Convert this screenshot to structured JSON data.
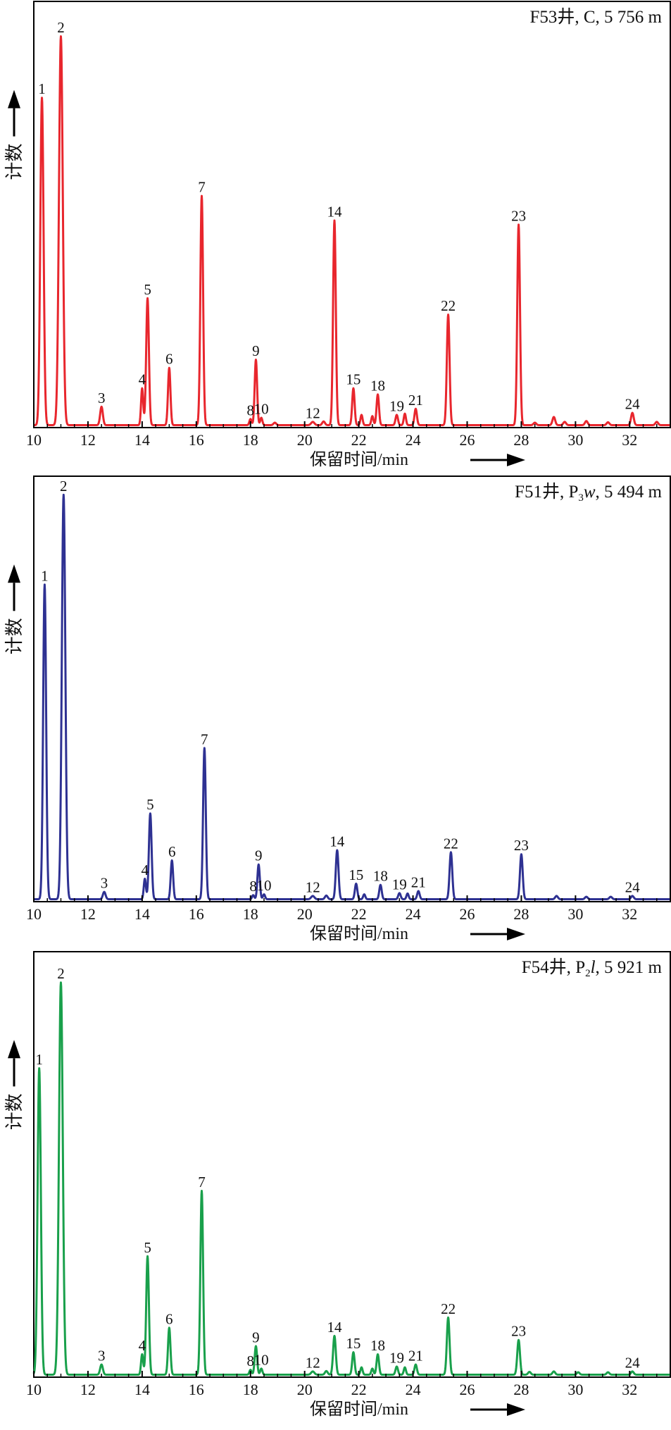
{
  "chart_data": [
    {
      "type": "line",
      "title": "F53井, C, 5 756 m",
      "title_parts": {
        "well": "F53井,",
        "formation": "C",
        "formation_sub": "",
        "formation_italic": "",
        "depth": ", 5 756 m"
      },
      "xlabel": "保留时间/min",
      "ylabel": "计数",
      "xlim": [
        10,
        33.5
      ],
      "ylim": [
        0,
        100
      ],
      "xticks": [
        10,
        12,
        14,
        16,
        18,
        20,
        22,
        24,
        26,
        28,
        30,
        32
      ],
      "color": "#e8262d",
      "baseline_level": 0.6,
      "peaks": [
        {
          "label": "1",
          "x": 10.3,
          "height": 80,
          "width": 0.06
        },
        {
          "label": "2",
          "x": 11.0,
          "height": 95,
          "width": 0.07
        },
        {
          "label": "3",
          "x": 12.5,
          "height": 4.5,
          "width": 0.05
        },
        {
          "label": "4",
          "x": 14.0,
          "height": 9,
          "width": 0.04
        },
        {
          "label": "5",
          "x": 14.2,
          "height": 31,
          "width": 0.05
        },
        {
          "label": "6",
          "x": 15.0,
          "height": 14,
          "width": 0.045
        },
        {
          "label": "7",
          "x": 16.2,
          "height": 56,
          "width": 0.05
        },
        {
          "label": "8",
          "x": 18.0,
          "height": 1.5,
          "width": 0.04
        },
        {
          "label": "9",
          "x": 18.2,
          "height": 16,
          "width": 0.045
        },
        {
          "label": "10",
          "x": 18.4,
          "height": 1.8,
          "width": 0.04
        },
        {
          "label": "12",
          "x": 20.3,
          "height": 0.8,
          "width": 0.06
        },
        {
          "label": "14",
          "x": 21.1,
          "height": 50,
          "width": 0.05
        },
        {
          "label": "15",
          "x": 21.8,
          "height": 9,
          "width": 0.045
        },
        {
          "label": "18",
          "x": 22.7,
          "height": 7.5,
          "width": 0.045
        },
        {
          "label": "19",
          "x": 23.4,
          "height": 2.5,
          "width": 0.045
        },
        {
          "label": "21",
          "x": 24.1,
          "height": 4,
          "width": 0.045
        },
        {
          "label": "22",
          "x": 25.3,
          "height": 27,
          "width": 0.05
        },
        {
          "label": "23",
          "x": 27.9,
          "height": 49,
          "width": 0.05
        },
        {
          "label": "24",
          "x": 32.1,
          "height": 3,
          "width": 0.05
        }
      ],
      "minor_peaks": [
        {
          "x": 18.9,
          "height": 0.6,
          "width": 0.05
        },
        {
          "x": 20.7,
          "height": 0.9,
          "width": 0.05
        },
        {
          "x": 22.1,
          "height": 2.5,
          "width": 0.04
        },
        {
          "x": 22.5,
          "height": 2.2,
          "width": 0.04
        },
        {
          "x": 23.7,
          "height": 2.8,
          "width": 0.04
        },
        {
          "x": 28.5,
          "height": 0.6,
          "width": 0.05
        },
        {
          "x": 29.2,
          "height": 2,
          "width": 0.05
        },
        {
          "x": 29.6,
          "height": 0.8,
          "width": 0.05
        },
        {
          "x": 30.4,
          "height": 1,
          "width": 0.05
        },
        {
          "x": 31.2,
          "height": 0.7,
          "width": 0.05
        },
        {
          "x": 33.0,
          "height": 0.8,
          "width": 0.05
        }
      ],
      "legend": "none"
    },
    {
      "type": "line",
      "title": "F51井, P3w, 5 494 m",
      "title_parts": {
        "well": "F51井,",
        "formation": "P",
        "formation_sub": "3",
        "formation_italic": "w",
        "depth": ", 5 494 m"
      },
      "xlabel": "保留时间/min",
      "ylabel": "计数",
      "xlim": [
        10,
        33.5
      ],
      "ylim": [
        0,
        100
      ],
      "xticks": [
        10,
        12,
        14,
        16,
        18,
        20,
        22,
        24,
        26,
        28,
        30,
        32
      ],
      "color": "#2e3192",
      "baseline_level": 0.6,
      "peaks": [
        {
          "label": "1",
          "x": 10.4,
          "height": 77,
          "width": 0.055
        },
        {
          "label": "2",
          "x": 11.1,
          "height": 99,
          "width": 0.065
        },
        {
          "label": "3",
          "x": 12.6,
          "height": 1.8,
          "width": 0.05
        },
        {
          "label": "4",
          "x": 14.1,
          "height": 5,
          "width": 0.04
        },
        {
          "label": "5",
          "x": 14.3,
          "height": 21,
          "width": 0.05
        },
        {
          "label": "6",
          "x": 15.1,
          "height": 9.5,
          "width": 0.045
        },
        {
          "label": "7",
          "x": 16.3,
          "height": 37,
          "width": 0.05
        },
        {
          "label": "8",
          "x": 18.1,
          "height": 1,
          "width": 0.04
        },
        {
          "label": "9",
          "x": 18.3,
          "height": 8.5,
          "width": 0.045
        },
        {
          "label": "10",
          "x": 18.5,
          "height": 1.2,
          "width": 0.04
        },
        {
          "label": "12",
          "x": 20.3,
          "height": 0.8,
          "width": 0.06
        },
        {
          "label": "14",
          "x": 21.2,
          "height": 12,
          "width": 0.05
        },
        {
          "label": "15",
          "x": 21.9,
          "height": 3.8,
          "width": 0.045
        },
        {
          "label": "18",
          "x": 22.8,
          "height": 3.5,
          "width": 0.045
        },
        {
          "label": "19",
          "x": 23.5,
          "height": 1.5,
          "width": 0.045
        },
        {
          "label": "21",
          "x": 24.2,
          "height": 2,
          "width": 0.045
        },
        {
          "label": "22",
          "x": 25.4,
          "height": 11.5,
          "width": 0.05
        },
        {
          "label": "23",
          "x": 28.0,
          "height": 11,
          "width": 0.05
        },
        {
          "label": "24",
          "x": 32.1,
          "height": 0.8,
          "width": 0.05
        }
      ],
      "minor_peaks": [
        {
          "x": 20.8,
          "height": 0.9,
          "width": 0.05
        },
        {
          "x": 22.2,
          "height": 1.2,
          "width": 0.04
        },
        {
          "x": 23.8,
          "height": 1.4,
          "width": 0.04
        },
        {
          "x": 29.3,
          "height": 0.8,
          "width": 0.05
        },
        {
          "x": 30.4,
          "height": 0.6,
          "width": 0.05
        },
        {
          "x": 31.3,
          "height": 0.6,
          "width": 0.05
        }
      ],
      "legend": "none"
    },
    {
      "type": "line",
      "title": "F54井, P2l, 5 921 m",
      "title_parts": {
        "well": "F54井,",
        "formation": "P",
        "formation_sub": "2",
        "formation_italic": "l",
        "depth": ", 5 921 m"
      },
      "xlabel": "保留时间/min",
      "ylabel": "计数",
      "xlim": [
        10,
        33.5
      ],
      "ylim": [
        0,
        100
      ],
      "xticks": [
        10,
        12,
        14,
        16,
        18,
        20,
        22,
        24,
        26,
        28,
        30,
        32
      ],
      "color": "#19a04b",
      "baseline_level": 0.6,
      "peaks": [
        {
          "label": "1",
          "x": 10.2,
          "height": 75,
          "width": 0.06
        },
        {
          "label": "2",
          "x": 11.0,
          "height": 96,
          "width": 0.07
        },
        {
          "label": "3",
          "x": 12.5,
          "height": 2.5,
          "width": 0.05
        },
        {
          "label": "4",
          "x": 14.0,
          "height": 5,
          "width": 0.04
        },
        {
          "label": "5",
          "x": 14.2,
          "height": 29,
          "width": 0.05
        },
        {
          "label": "6",
          "x": 15.0,
          "height": 11.5,
          "width": 0.045
        },
        {
          "label": "7",
          "x": 16.2,
          "height": 45,
          "width": 0.05
        },
        {
          "label": "8",
          "x": 18.0,
          "height": 1.2,
          "width": 0.04
        },
        {
          "label": "9",
          "x": 18.2,
          "height": 7,
          "width": 0.045
        },
        {
          "label": "10",
          "x": 18.4,
          "height": 1.5,
          "width": 0.04
        },
        {
          "label": "12",
          "x": 20.3,
          "height": 0.8,
          "width": 0.06
        },
        {
          "label": "14",
          "x": 21.1,
          "height": 9.5,
          "width": 0.05
        },
        {
          "label": "15",
          "x": 21.8,
          "height": 5.5,
          "width": 0.045
        },
        {
          "label": "18",
          "x": 22.7,
          "height": 5,
          "width": 0.045
        },
        {
          "label": "19",
          "x": 23.4,
          "height": 2,
          "width": 0.045
        },
        {
          "label": "21",
          "x": 24.1,
          "height": 2.5,
          "width": 0.045
        },
        {
          "label": "22",
          "x": 25.3,
          "height": 14,
          "width": 0.05
        },
        {
          "label": "23",
          "x": 27.9,
          "height": 8.5,
          "width": 0.05
        },
        {
          "label": "24",
          "x": 32.1,
          "height": 0.8,
          "width": 0.05
        }
      ],
      "minor_peaks": [
        {
          "x": 20.8,
          "height": 0.9,
          "width": 0.05
        },
        {
          "x": 22.1,
          "height": 1.8,
          "width": 0.04
        },
        {
          "x": 22.5,
          "height": 1.5,
          "width": 0.04
        },
        {
          "x": 23.7,
          "height": 1.8,
          "width": 0.04
        },
        {
          "x": 28.3,
          "height": 0.7,
          "width": 0.05
        },
        {
          "x": 29.2,
          "height": 0.8,
          "width": 0.05
        },
        {
          "x": 30.1,
          "height": 0.6,
          "width": 0.05
        },
        {
          "x": 31.2,
          "height": 0.6,
          "width": 0.05
        }
      ],
      "legend": "none"
    }
  ]
}
